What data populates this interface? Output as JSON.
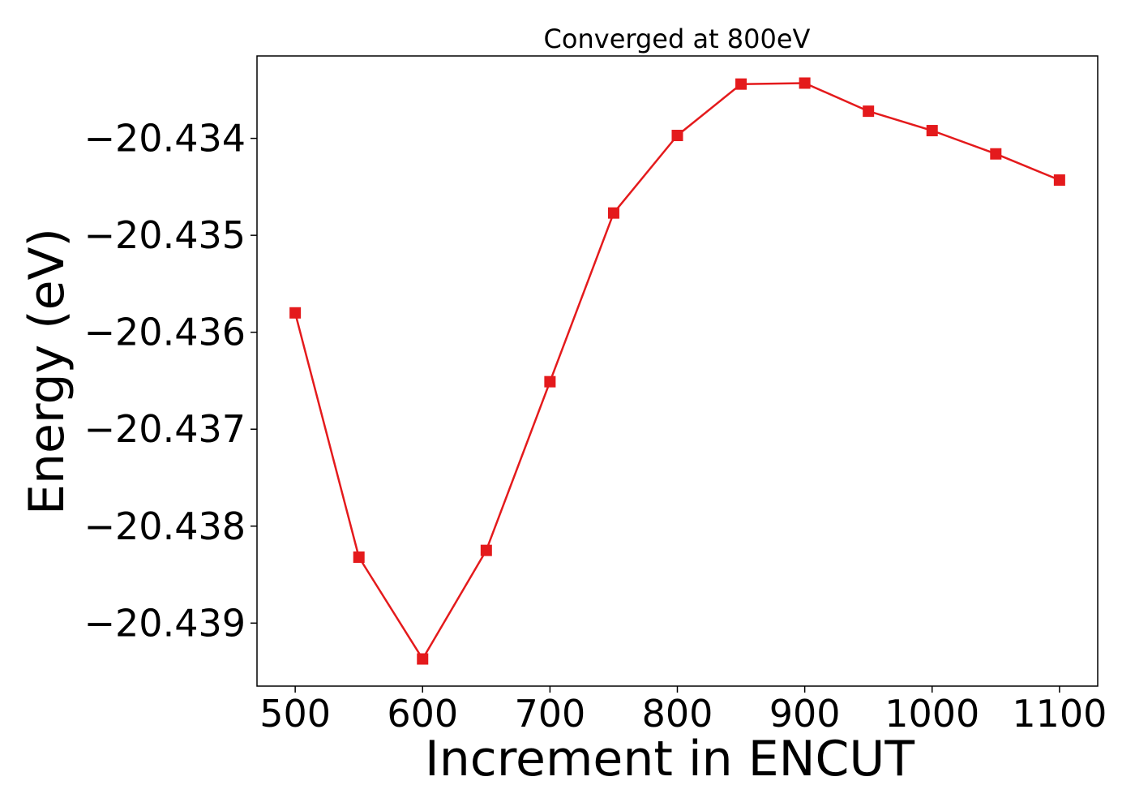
{
  "chart_data": {
    "type": "line",
    "title": "Converged at 800eV",
    "xlabel": "Increment in ENCUT",
    "ylabel": "Energy (eV)",
    "x": [
      500,
      550,
      600,
      650,
      700,
      750,
      800,
      850,
      900,
      950,
      1000,
      1050,
      1100
    ],
    "series": [
      {
        "values": [
          -20.4358,
          -20.43832,
          -20.43937,
          -20.43825,
          -20.43651,
          -20.43477,
          -20.43397,
          -20.43344,
          -20.43343,
          -20.43372,
          -20.43392,
          -20.43416,
          -20.43443
        ],
        "color": "#e41a1c",
        "marker": "square"
      }
    ],
    "xlim": [
      470,
      1130
    ],
    "ylim": [
      -20.43965,
      -20.43315
    ],
    "xticks": [
      500,
      600,
      700,
      800,
      900,
      1000,
      1100
    ],
    "xtick_labels": [
      "500",
      "600",
      "700",
      "800",
      "900",
      "1000",
      "1100"
    ],
    "yticks": [
      -20.434,
      -20.435,
      -20.436,
      -20.437,
      -20.438,
      -20.439
    ],
    "ytick_labels": [
      "−20.434",
      "−20.435",
      "−20.436",
      "−20.437",
      "−20.438",
      "−20.439"
    ],
    "grid": false,
    "legend": "none"
  }
}
